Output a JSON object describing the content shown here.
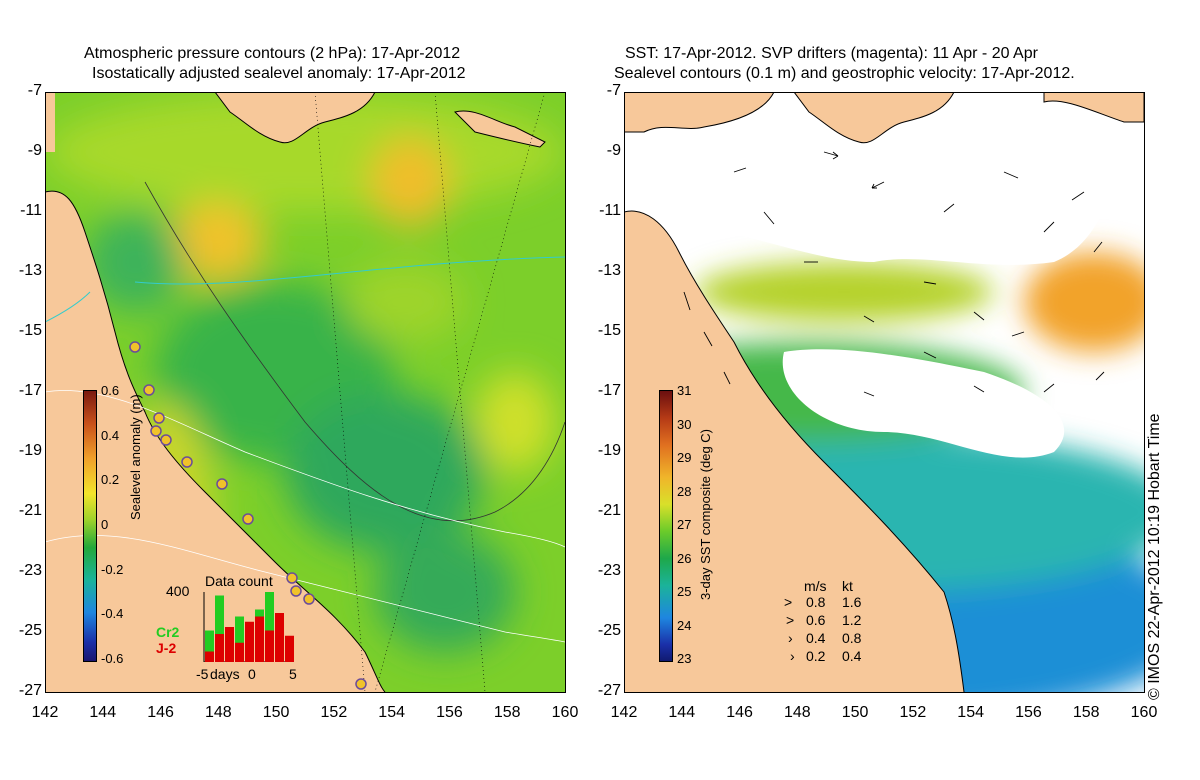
{
  "left_panel": {
    "title_line1": "Atmospheric pressure contours (2 hPa): 17-Apr-2012",
    "title_line2": "Isostatically adjusted sealevel anomaly: 17-Apr-2012",
    "colorbar": {
      "title": "Sealevel anomaly (m)",
      "ticks": [
        "0.6",
        "0.4",
        "0.2",
        "0",
        "-0.2",
        "-0.4",
        "-0.6"
      ]
    },
    "data_count": {
      "title": "Data count",
      "ymax_label": "400",
      "x_labels": [
        "-5",
        "days",
        "0",
        "5"
      ],
      "series_labels": [
        "Cr2",
        "J-2"
      ],
      "series_colors": [
        "#22cc22",
        "#dd0000"
      ],
      "cr2_values": [
        180,
        380,
        120,
        260,
        200,
        300,
        400,
        150,
        120
      ],
      "j2_values": [
        60,
        160,
        200,
        110,
        230,
        260,
        180,
        280,
        150
      ]
    }
  },
  "right_panel": {
    "title_line1": "SST: 17-Apr-2012. SVP drifters (magenta): 11 Apr - 20 Apr",
    "title_line2": "Sealevel contours (0.1 m) and geostrophic velocity: 17-Apr-2012.",
    "colorbar": {
      "title": "3-day SST composite (deg C)",
      "ticks": [
        "31",
        "30",
        "29",
        "28",
        "27",
        "26",
        "25",
        "24",
        "23"
      ]
    },
    "velocity_legend": {
      "header_ms": "m/s",
      "header_kt": "kt",
      "rows": [
        {
          "ms": "0.8",
          "kt": "1.6"
        },
        {
          "ms": "0.6",
          "kt": "1.2"
        },
        {
          "ms": "0.4",
          "kt": "0.8"
        },
        {
          "ms": "0.2",
          "kt": "0.4"
        }
      ]
    }
  },
  "axes": {
    "y_labels": [
      "-7",
      "-9",
      "-11",
      "-13",
      "-15",
      "-17",
      "-19",
      "-21",
      "-23",
      "-25",
      "-27"
    ],
    "x_labels": [
      "142",
      "144",
      "146",
      "148",
      "150",
      "152",
      "154",
      "156",
      "158",
      "160"
    ]
  },
  "credit": "© IMOS 22-Apr-2012 10:19 Hobart Time"
}
